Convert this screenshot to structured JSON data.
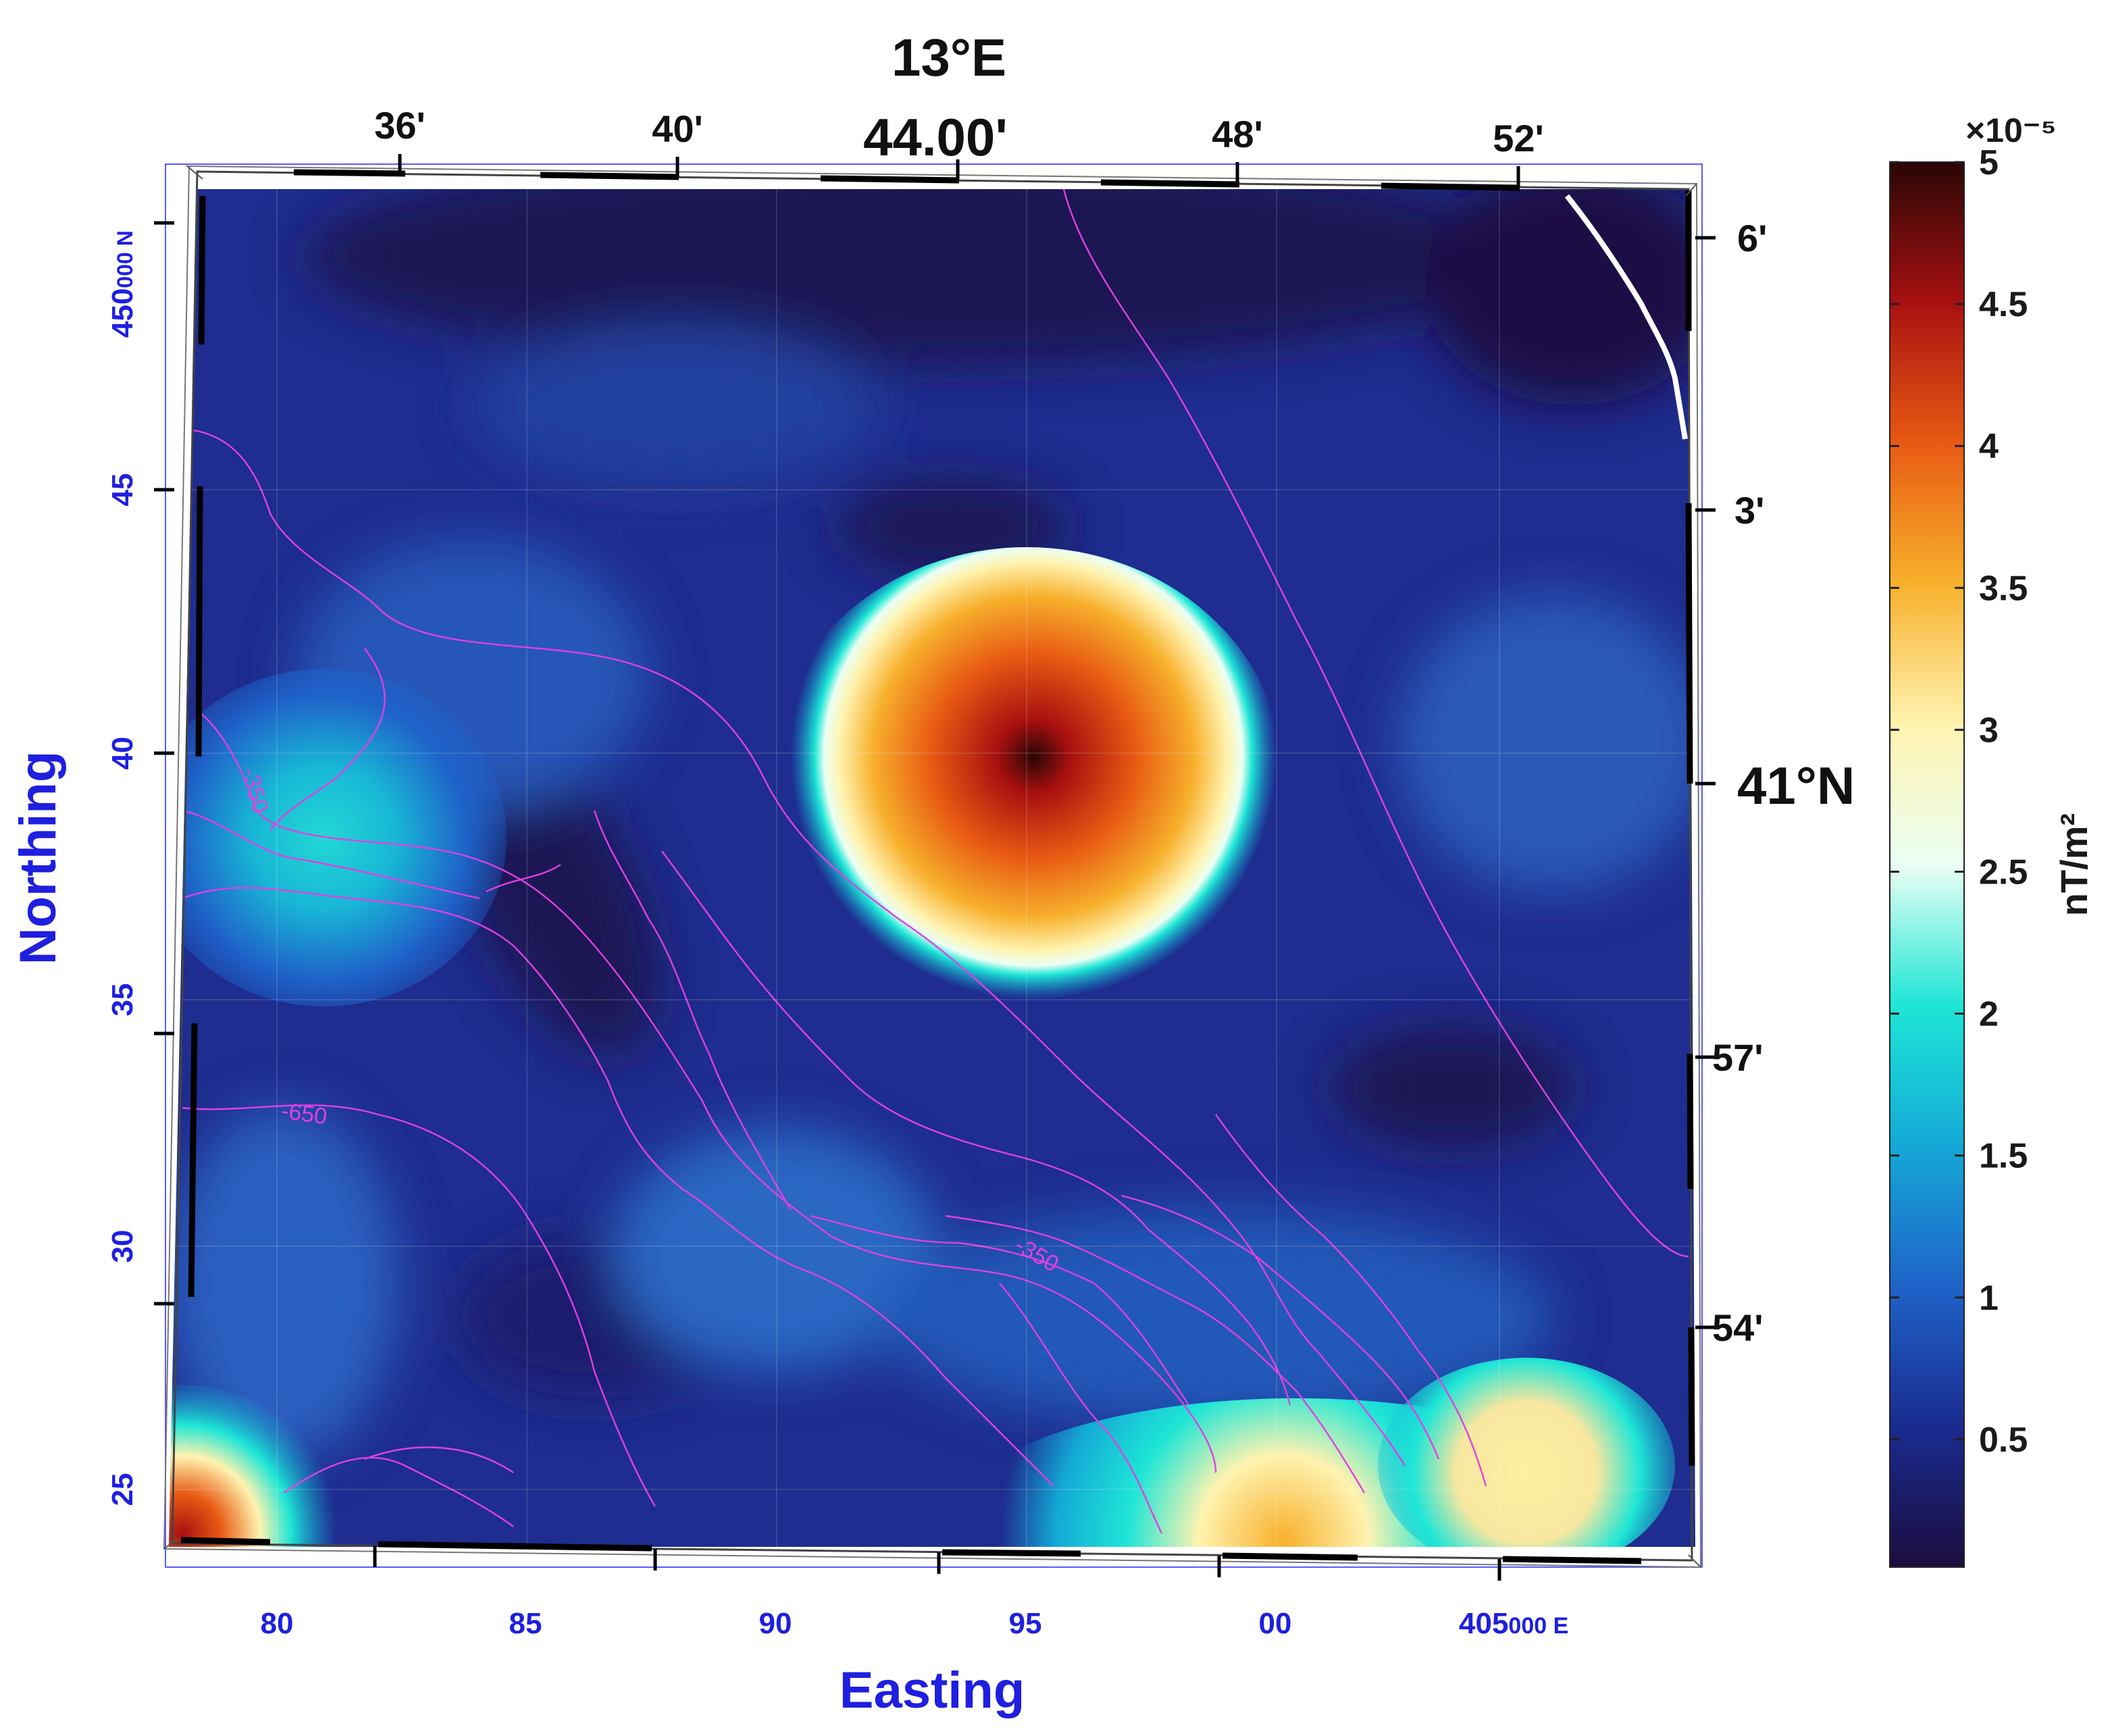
{
  "map": {
    "x_axis_title": "Easting",
    "y_axis_title": "Northing",
    "top_major_label": "13°E",
    "top_center_label": "44.00'",
    "top_minutes": [
      "36'",
      "40'",
      "48'",
      "52'"
    ],
    "right_major_label": "41°N",
    "right_minutes": [
      "6'",
      "3'",
      "57'",
      "54'"
    ],
    "easting_ticks": [
      "80",
      "85",
      "90",
      "95",
      "00"
    ],
    "easting_last_prefix": "405",
    "easting_last_suffix": "000 E",
    "northing_ticks": [
      "45",
      "40",
      "35",
      "30",
      "25"
    ],
    "northing_top_prefix": "450",
    "northing_top_suffix": "000 N",
    "contour_labels": [
      "-350",
      "-650",
      "-350"
    ],
    "colors": {
      "utm_labels": "#1f1fe0",
      "contours": "#e040e0",
      "coastline": "#ffffff",
      "background_field": "#1e2d8f"
    }
  },
  "colorbar": {
    "title": "nT/m²",
    "exponent": "×10⁻⁵",
    "ticks": [
      "5",
      "4.5",
      "4",
      "3.5",
      "3",
      "2.5",
      "2",
      "1.5",
      "1",
      "0.5"
    ],
    "min": 0.05,
    "max": 5,
    "colormap": [
      "#1b0d3e",
      "#1a2b8f",
      "#1f63c9",
      "#14a9d6",
      "#1ee6d6",
      "#eafff4",
      "#fff3b0",
      "#f7b02c",
      "#e85a13",
      "#a81010",
      "#2a0606"
    ]
  }
}
